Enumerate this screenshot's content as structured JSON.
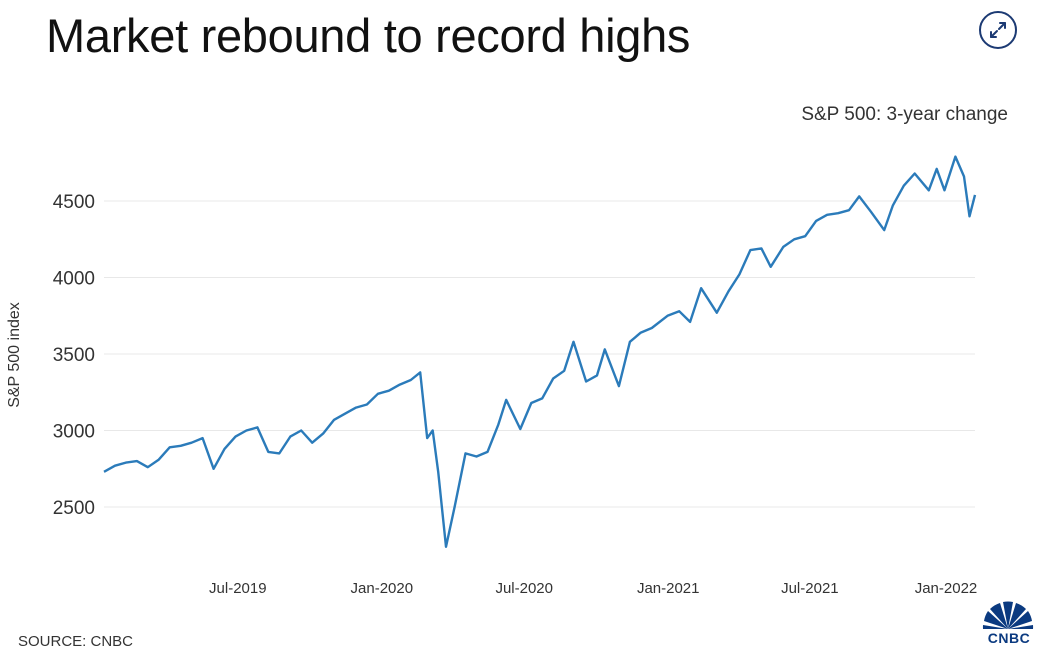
{
  "header": {
    "title": "Market rebound to record highs",
    "expand_icon": "expand-arrows-icon"
  },
  "footer": {
    "source": "SOURCE: CNBC",
    "logo_text": "CNBC",
    "logo_icon": "cnbc-peacock-icon"
  },
  "chart_data": {
    "type": "line",
    "title": "Market rebound to record highs",
    "subtitle": "S&P 500: 3-year change",
    "xlabel": "",
    "ylabel": "S&P 500 index",
    "ylim": [
      2200,
      4900
    ],
    "yticks": [
      2500,
      3000,
      3500,
      4000,
      4500
    ],
    "xticks": [
      "Jul-2019",
      "Jan-2020",
      "Jul-2020",
      "Jan-2021",
      "Jul-2021",
      "Jan-2022"
    ],
    "grid": "horizontal",
    "line_color": "#2b7bba",
    "series": [
      {
        "name": "",
        "x": [
          "2019-01-11",
          "2019-01-25",
          "2019-02-08",
          "2019-02-22",
          "2019-03-08",
          "2019-03-22",
          "2019-04-05",
          "2019-04-19",
          "2019-05-03",
          "2019-05-17",
          "2019-05-31",
          "2019-06-14",
          "2019-06-28",
          "2019-07-12",
          "2019-07-26",
          "2019-08-09",
          "2019-08-23",
          "2019-09-06",
          "2019-09-20",
          "2019-10-04",
          "2019-10-18",
          "2019-11-01",
          "2019-11-15",
          "2019-11-29",
          "2019-12-13",
          "2019-12-27",
          "2020-01-10",
          "2020-01-24",
          "2020-02-07",
          "2020-02-19",
          "2020-02-28",
          "2020-03-06",
          "2020-03-13",
          "2020-03-23",
          "2020-04-03",
          "2020-04-17",
          "2020-05-01",
          "2020-05-15",
          "2020-05-29",
          "2020-06-08",
          "2020-06-26",
          "2020-07-10",
          "2020-07-24",
          "2020-08-07",
          "2020-08-21",
          "2020-09-02",
          "2020-09-18",
          "2020-10-02",
          "2020-10-12",
          "2020-10-30",
          "2020-11-13",
          "2020-11-27",
          "2020-12-11",
          "2020-12-31",
          "2021-01-15",
          "2021-01-29",
          "2021-02-12",
          "2021-03-04",
          "2021-03-19",
          "2021-04-02",
          "2021-04-16",
          "2021-04-30",
          "2021-05-12",
          "2021-05-28",
          "2021-06-11",
          "2021-06-25",
          "2021-07-09",
          "2021-07-23",
          "2021-08-06",
          "2021-08-20",
          "2021-09-02",
          "2021-09-17",
          "2021-10-04",
          "2021-10-15",
          "2021-10-29",
          "2021-11-12",
          "2021-11-30",
          "2021-12-10",
          "2021-12-20",
          "2022-01-03",
          "2022-01-14",
          "2022-01-21",
          "2022-01-28"
        ],
        "values": [
          2730,
          2770,
          2790,
          2800,
          2760,
          2810,
          2890,
          2900,
          2920,
          2950,
          2750,
          2880,
          2960,
          3000,
          3020,
          2860,
          2850,
          2960,
          3000,
          2920,
          2980,
          3070,
          3110,
          3150,
          3170,
          3240,
          3260,
          3300,
          3330,
          3380,
          2950,
          3000,
          2730,
          2240,
          2500,
          2850,
          2830,
          2860,
          3040,
          3200,
          3010,
          3180,
          3210,
          3340,
          3390,
          3580,
          3320,
          3360,
          3530,
          3290,
          3580,
          3640,
          3670,
          3750,
          3780,
          3710,
          3930,
          3770,
          3910,
          4020,
          4180,
          4190,
          4070,
          4200,
          4250,
          4270,
          4370,
          4410,
          4420,
          4440,
          4530,
          4430,
          4310,
          4470,
          4600,
          4680,
          4570,
          4710,
          4570,
          4790,
          4660,
          4400,
          4540
        ]
      }
    ]
  }
}
